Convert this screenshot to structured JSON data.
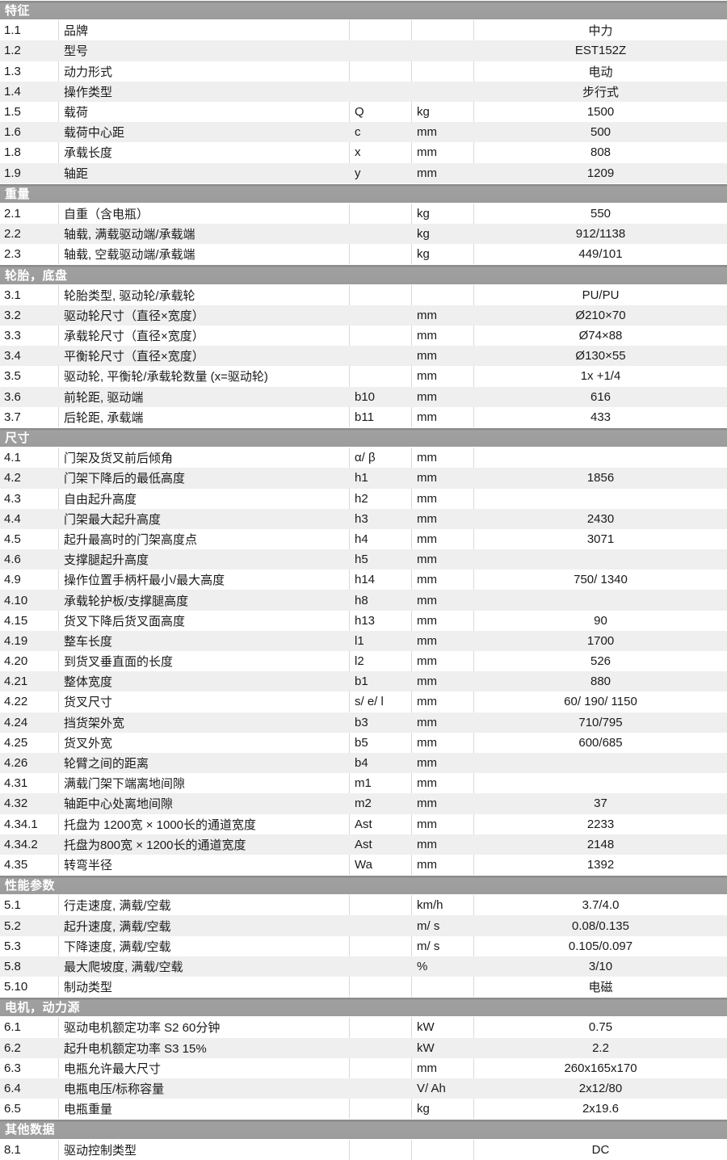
{
  "colors": {
    "section_header_bg": "#9c9c9c",
    "section_header_text": "#ffffff",
    "row_bg": "#ffffff",
    "row_alt_bg": "#efefef",
    "divider": "#d9d9d9",
    "text": "#1a1a1a"
  },
  "sections": [
    {
      "title": "特征",
      "rows": [
        {
          "no": "1.1",
          "desc": "品牌",
          "sym": "",
          "unit": "",
          "val": "中力"
        },
        {
          "no": "1.2",
          "desc": "型号",
          "sym": "",
          "unit": "",
          "val": "EST152Z"
        },
        {
          "no": "1.3",
          "desc": "动力形式",
          "sym": "",
          "unit": "",
          "val": "电动"
        },
        {
          "no": "1.4",
          "desc": "操作类型",
          "sym": "",
          "unit": "",
          "val": "步行式"
        },
        {
          "no": "1.5",
          "desc": "载荷",
          "sym": "Q",
          "unit": "kg",
          "val": "1500"
        },
        {
          "no": "1.6",
          "desc": "载荷中心距",
          "sym": "c",
          "unit": "mm",
          "val": "500"
        },
        {
          "no": "1.8",
          "desc": "承载长度",
          "sym": "x",
          "unit": "mm",
          "val": "808"
        },
        {
          "no": "1.9",
          "desc": "轴距",
          "sym": "y",
          "unit": "mm",
          "val": "1209"
        }
      ]
    },
    {
      "title": "重量",
      "rows": [
        {
          "no": "2.1",
          "desc": "自重（含电瓶）",
          "sym": "",
          "unit": "kg",
          "val": "550"
        },
        {
          "no": "2.2",
          "desc": "轴载, 满载驱动端/承载端",
          "sym": "",
          "unit": "kg",
          "val": "912/1138"
        },
        {
          "no": "2.3",
          "desc": "轴载, 空载驱动端/承载端",
          "sym": "",
          "unit": "kg",
          "val": "449/101"
        }
      ]
    },
    {
      "title": "轮胎，底盘",
      "rows": [
        {
          "no": "3.1",
          "desc": "轮胎类型, 驱动轮/承载轮",
          "sym": "",
          "unit": "",
          "val": "PU/PU"
        },
        {
          "no": "3.2",
          "desc": "驱动轮尺寸（直径×宽度）",
          "sym": "",
          "unit": "mm",
          "val": "Ø210×70"
        },
        {
          "no": "3.3",
          "desc": "承载轮尺寸（直径×宽度）",
          "sym": "",
          "unit": "mm",
          "val": "Ø74×88"
        },
        {
          "no": "3.4",
          "desc": "平衡轮尺寸（直径×宽度）",
          "sym": "",
          "unit": "mm",
          "val": "Ø130×55"
        },
        {
          "no": "3.5",
          "desc": "驱动轮, 平衡轮/承载轮数量 (x=驱动轮)",
          "sym": "",
          "unit": "mm",
          "val": "1x +1/4"
        },
        {
          "no": "3.6",
          "desc": "前轮距, 驱动端",
          "sym": "b10",
          "unit": "mm",
          "val": "616"
        },
        {
          "no": "3.7",
          "desc": "后轮距, 承载端",
          "sym": "b11",
          "unit": "mm",
          "val": "433"
        }
      ]
    },
    {
      "title": "尺寸",
      "rows": [
        {
          "no": "4.1",
          "desc": "门架及货叉前后倾角",
          "sym": "α/ β",
          "unit": "mm",
          "val": ""
        },
        {
          "no": "4.2",
          "desc": "门架下降后的最低高度",
          "sym": "h1",
          "unit": "mm",
          "val": "1856"
        },
        {
          "no": "4.3",
          "desc": "自由起升高度",
          "sym": "h2",
          "unit": "mm",
          "val": ""
        },
        {
          "no": "4.4",
          "desc": "门架最大起升高度",
          "sym": "h3",
          "unit": "mm",
          "val": "2430"
        },
        {
          "no": "4.5",
          "desc": "起升最高时的门架高度点",
          "sym": "h4",
          "unit": "mm",
          "val": "3071"
        },
        {
          "no": "4.6",
          "desc": "支撑腿起升高度",
          "sym": "h5",
          "unit": "mm",
          "val": ""
        },
        {
          "no": "4.9",
          "desc": "操作位置手柄杆最小/最大高度",
          "sym": "h14",
          "unit": "mm",
          "val": "750/ 1340"
        },
        {
          "no": "4.10",
          "desc": "承载轮护板/支撑腿高度",
          "sym": "h8",
          "unit": "mm",
          "val": ""
        },
        {
          "no": "4.15",
          "desc": "货叉下降后货叉面高度",
          "sym": "h13",
          "unit": "mm",
          "val": "90"
        },
        {
          "no": "4.19",
          "desc": "整车长度",
          "sym": "l1",
          "unit": "mm",
          "val": "1700"
        },
        {
          "no": "4.20",
          "desc": "到货叉垂直面的长度",
          "sym": "l2",
          "unit": "mm",
          "val": "526"
        },
        {
          "no": "4.21",
          "desc": "整体宽度",
          "sym": "b1",
          "unit": "mm",
          "val": "880"
        },
        {
          "no": "4.22",
          "desc": "货叉尺寸",
          "sym": "s/ e/ l",
          "unit": "mm",
          "val": "60/ 190/ 1150"
        },
        {
          "no": "4.24",
          "desc": "挡货架外宽",
          "sym": "b3",
          "unit": "mm",
          "val": "710/795"
        },
        {
          "no": "4.25",
          "desc": "货叉外宽",
          "sym": "b5",
          "unit": "mm",
          "val": "600/685"
        },
        {
          "no": "4.26",
          "desc": "轮臂之间的距离",
          "sym": "b4",
          "unit": "mm",
          "val": ""
        },
        {
          "no": "4.31",
          "desc": "满载门架下端离地间隙",
          "sym": "m1",
          "unit": "mm",
          "val": ""
        },
        {
          "no": "4.32",
          "desc": "轴距中心处离地间隙",
          "sym": "m2",
          "unit": "mm",
          "val": "37"
        },
        {
          "no": "4.34.1",
          "desc": "托盘为 1200宽 × 1000长的通道宽度",
          "sym": "Ast",
          "unit": "mm",
          "val": "2233"
        },
        {
          "no": "4.34.2",
          "desc": "托盘为800宽 × 1200长的通道宽度",
          "sym": "Ast",
          "unit": "mm",
          "val": "2148"
        },
        {
          "no": "4.35",
          "desc": "转弯半径",
          "sym": "Wa",
          "unit": "mm",
          "val": "1392"
        }
      ]
    },
    {
      "title": "性能参数",
      "rows": [
        {
          "no": "5.1",
          "desc": "行走速度, 满载/空载",
          "sym": "",
          "unit": "km/h",
          "val": "3.7/4.0"
        },
        {
          "no": "5.2",
          "desc": "起升速度, 满载/空载",
          "sym": "",
          "unit": "m/ s",
          "val": "0.08/0.135"
        },
        {
          "no": "5.3",
          "desc": "下降速度, 满载/空载",
          "sym": "",
          "unit": "m/ s",
          "val": "0.105/0.097"
        },
        {
          "no": "5.8",
          "desc": "最大爬坡度, 满载/空载",
          "sym": "",
          "unit": "%",
          "val": "3/10"
        },
        {
          "no": "5.10",
          "desc": "制动类型",
          "sym": "",
          "unit": "",
          "val": "电磁"
        }
      ]
    },
    {
      "title": "电机，动力源",
      "rows": [
        {
          "no": "6.1",
          "desc": "驱动电机额定功率 S2 60分钟",
          "sym": "",
          "unit": "kW",
          "val": "0.75"
        },
        {
          "no": "6.2",
          "desc": "起升电机额定功率 S3 15%",
          "sym": "",
          "unit": "kW",
          "val": "2.2"
        },
        {
          "no": "6.3",
          "desc": "电瓶允许最大尺寸",
          "sym": "",
          "unit": "mm",
          "val": "260x165x170"
        },
        {
          "no": "6.4",
          "desc": "电瓶电压/标称容量",
          "sym": "",
          "unit": "V/ Ah",
          "val": "2x12/80"
        },
        {
          "no": "6.5",
          "desc": "电瓶重量",
          "sym": "",
          "unit": "kg",
          "val": "2x19.6"
        }
      ]
    },
    {
      "title": "其他数据",
      "rows": [
        {
          "no": "8.1",
          "desc": "驱动控制类型",
          "sym": "",
          "unit": "",
          "val": "DC"
        }
      ]
    }
  ]
}
